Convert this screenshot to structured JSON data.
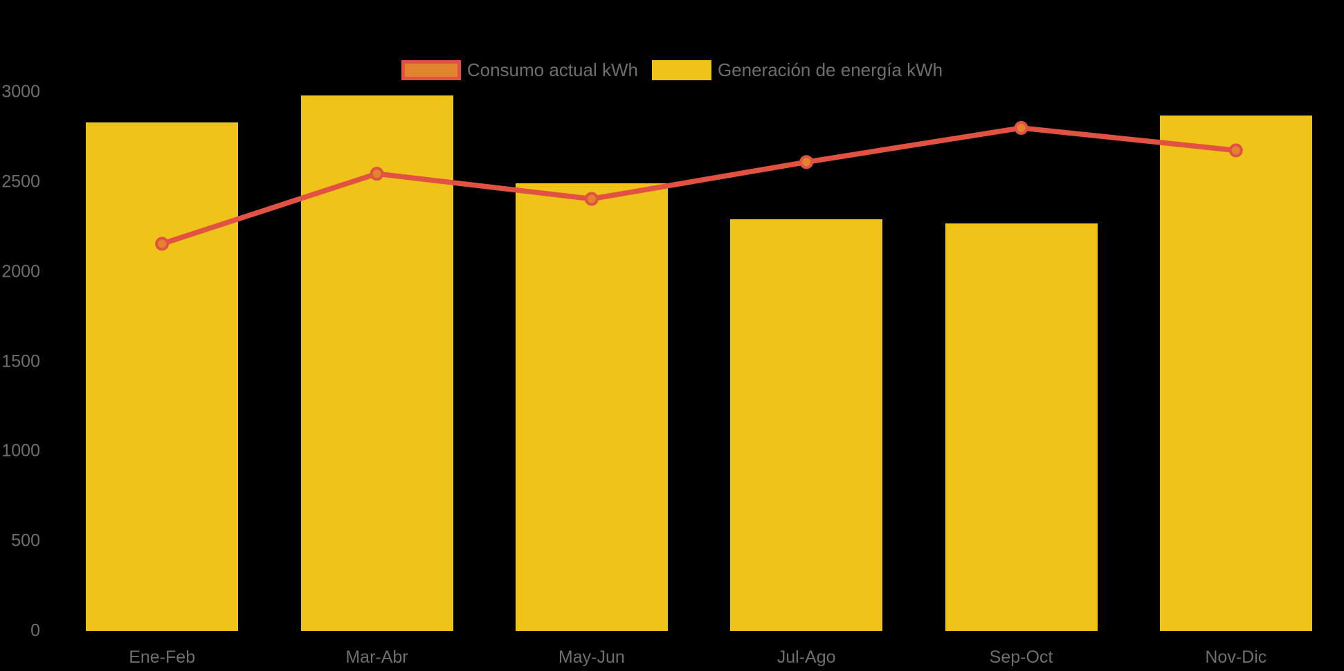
{
  "chart_data": {
    "type": "combo",
    "title": "",
    "categories": [
      "Ene-Feb",
      "Mar-Abr",
      "May-Jun",
      "Jul-Ago",
      "Sep-Oct",
      "Nov-Dic"
    ],
    "series": [
      {
        "name": "Consumo actual kWh",
        "type": "line",
        "color": "#E25243",
        "point_fill": "#E0852E",
        "values": [
          2155,
          2545,
          2405,
          2610,
          2800,
          2675
        ]
      },
      {
        "name": "Generación de energía kWh",
        "type": "bar",
        "color": "#EFC319",
        "values": [
          2830,
          2980,
          2490,
          2290,
          2270,
          2870
        ]
      }
    ],
    "xlabel": "",
    "ylabel": "",
    "ylim": [
      0,
      3000
    ],
    "yticks": [
      0,
      500,
      1000,
      1500,
      2000,
      2500,
      3000
    ],
    "legend_position": "top",
    "grid": false,
    "background": "#000000",
    "axis_text_color": "#6E6E6E"
  }
}
